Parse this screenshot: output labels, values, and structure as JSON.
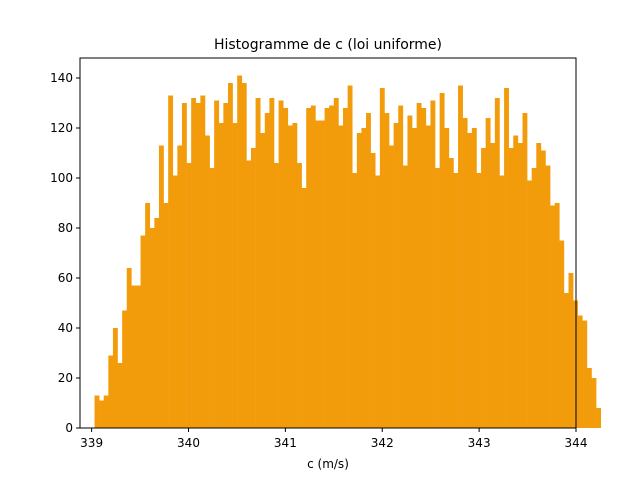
{
  "chart_data": {
    "type": "bar",
    "title": "Histogramme de c (loi uniforme)",
    "xlabel": "c (m/s)",
    "ylabel": "",
    "bar_color": "#f39c0b",
    "grid": false,
    "legend": "none",
    "xlim": [
      338.88,
      344.0
    ],
    "ylim": [
      0,
      148
    ],
    "xticks": [
      339,
      340,
      341,
      342,
      343,
      344
    ],
    "yticks": [
      0,
      20,
      40,
      60,
      80,
      100,
      120,
      140
    ],
    "bin_start": 339.03,
    "bin_width": 0.0475,
    "values": [
      13,
      11,
      13,
      29,
      40,
      26,
      47,
      64,
      57,
      57,
      77,
      90,
      80,
      84,
      113,
      90,
      133,
      101,
      113,
      130,
      106,
      132,
      130,
      133,
      117,
      104,
      131,
      122,
      130,
      138,
      122,
      141,
      138,
      107,
      112,
      132,
      118,
      126,
      132,
      106,
      131,
      128,
      121,
      122,
      106,
      96,
      128,
      129,
      123,
      123,
      128,
      129,
      132,
      121,
      128,
      137,
      102,
      118,
      120,
      126,
      110,
      101,
      136,
      126,
      113,
      122,
      129,
      105,
      125,
      120,
      130,
      128,
      121,
      131,
      104,
      134,
      120,
      108,
      102,
      137,
      124,
      118,
      120,
      102,
      112,
      124,
      114,
      132,
      101,
      136,
      112,
      117,
      114,
      126,
      99,
      104,
      114,
      111,
      105,
      89,
      90,
      75,
      54,
      62,
      51,
      45,
      43,
      24,
      20,
      8
    ]
  }
}
